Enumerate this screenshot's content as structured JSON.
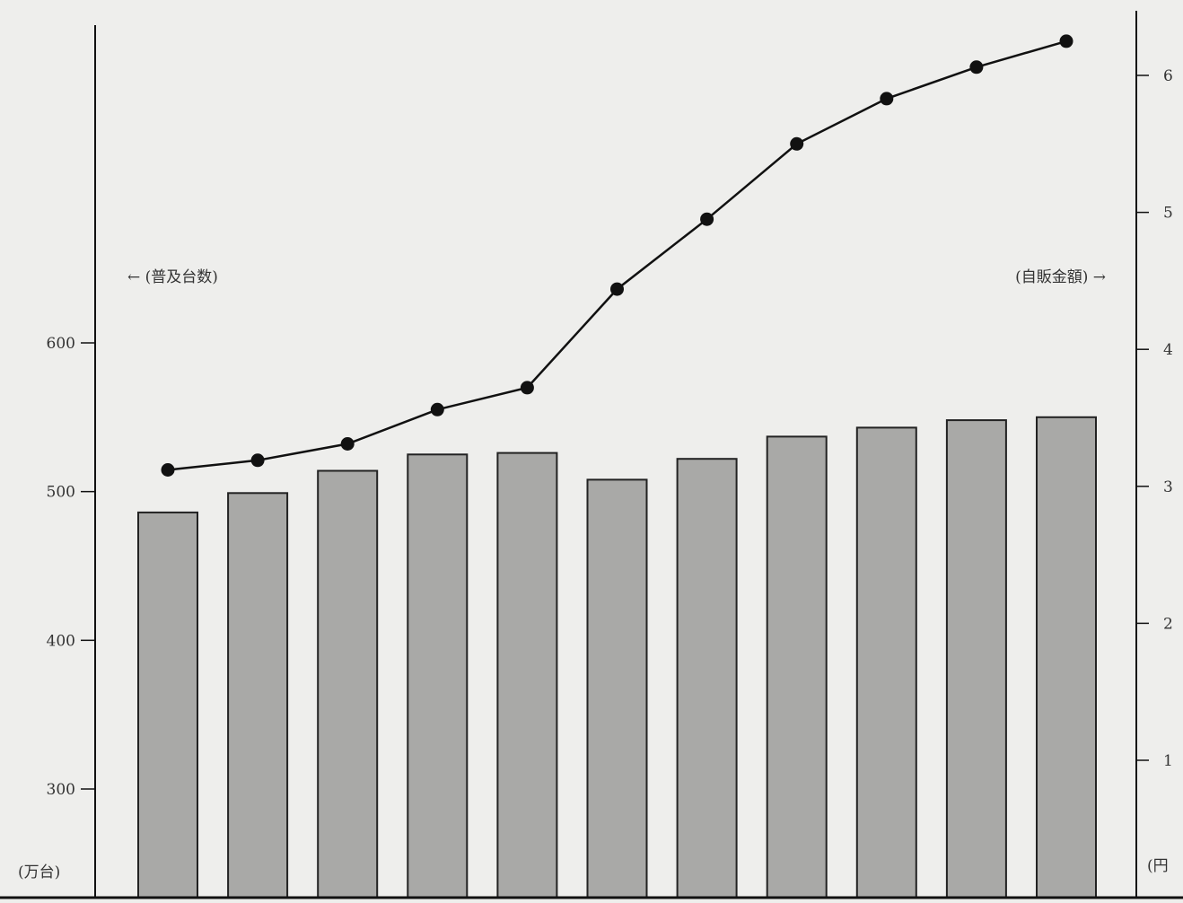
{
  "chart_data": {
    "type": "bar+line",
    "categories": [
      "",
      "",
      "",
      "",
      "",
      "",
      "",
      "",
      "",
      "",
      ""
    ],
    "series": [
      {
        "kind": "bar",
        "axis": "left",
        "values": [
          486,
          499,
          514,
          525,
          526,
          508,
          522,
          537,
          543,
          548,
          550
        ]
      },
      {
        "kind": "line",
        "axis": "right",
        "values": [
          3.12,
          3.19,
          3.31,
          3.56,
          3.72,
          4.44,
          4.95,
          5.5,
          5.83,
          6.06,
          6.25
        ]
      }
    ],
    "left_axis": {
      "range": [
        240,
        620
      ],
      "ticks": [
        300,
        400,
        500,
        600
      ],
      "tick_labels": [
        "300",
        "400",
        "500",
        "600"
      ],
      "unit": "(万台)",
      "series_label": "← (普及台数)"
    },
    "right_axis": {
      "range": [
        0,
        6.4
      ],
      "ticks": [
        1,
        2,
        3,
        4,
        5,
        6
      ],
      "tick_labels": [
        "1",
        "2",
        "3",
        "4",
        "5",
        "6"
      ],
      "unit": "(円",
      "series_label": "(自販金額) →"
    },
    "grid": false,
    "colors": {
      "bar_fill": "#a9a9a7",
      "bar_stroke": "#222222",
      "line": "#111111",
      "marker": "#111111",
      "axis": "#111111"
    }
  }
}
